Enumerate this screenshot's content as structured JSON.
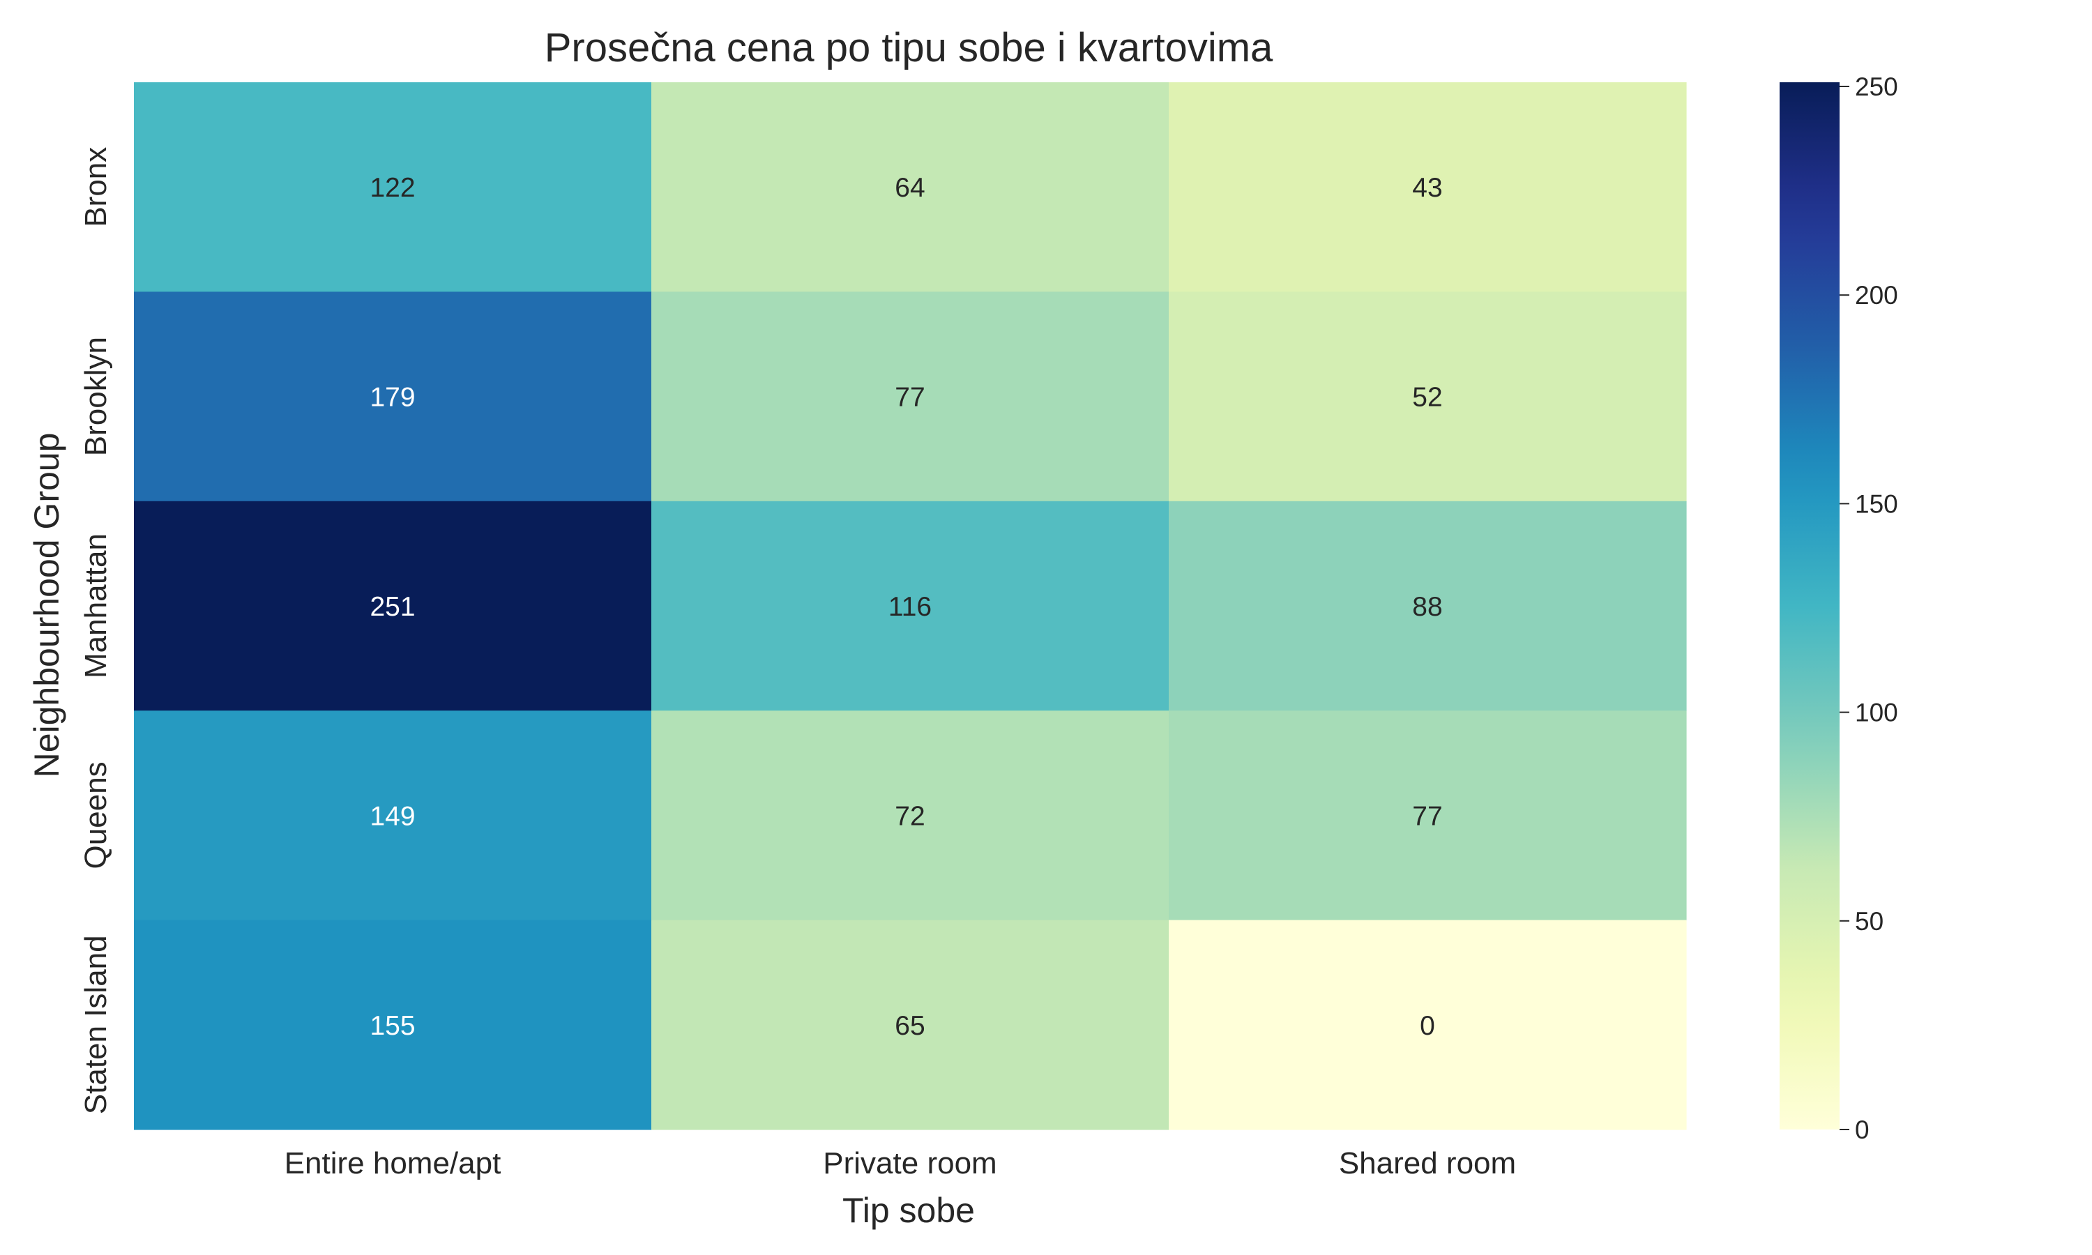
{
  "chart_data": {
    "type": "heatmap",
    "title": "Prosečna cena po tipu sobe i kvartovima",
    "xlabel": "Tip sobe",
    "ylabel": "Neighbourhood Group",
    "x_categories": [
      "Entire home/apt",
      "Private room",
      "Shared room"
    ],
    "y_categories": [
      "Bronx",
      "Brooklyn",
      "Manhattan",
      "Queens",
      "Staten Island"
    ],
    "values": [
      [
        122,
        64,
        43
      ],
      [
        179,
        77,
        52
      ],
      [
        251,
        116,
        88
      ],
      [
        149,
        72,
        77
      ],
      [
        155,
        65,
        0
      ]
    ],
    "colormap": "YlGnBu",
    "colorbar": {
      "min": 0,
      "max": 251,
      "ticks": [
        0,
        50,
        100,
        150,
        200,
        250
      ],
      "tick_labels": [
        "0",
        "50",
        "100",
        "150",
        "200",
        "250"
      ]
    },
    "annotations_shown": true
  }
}
